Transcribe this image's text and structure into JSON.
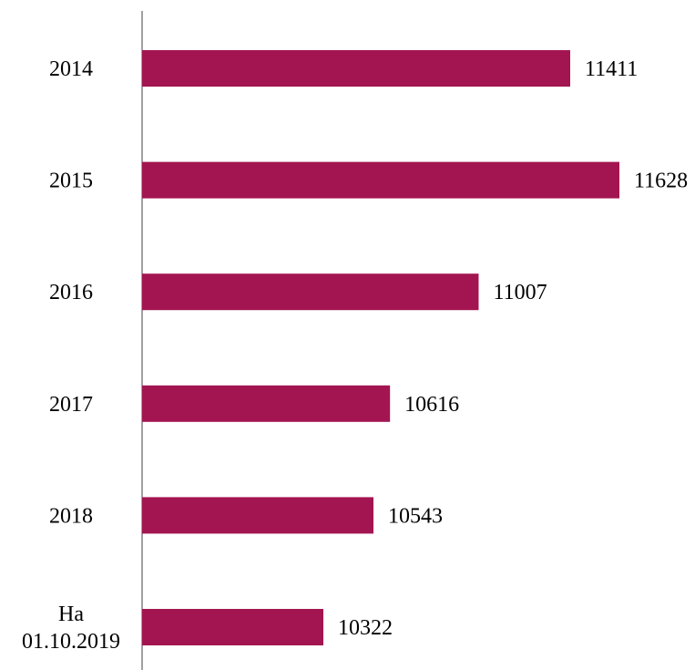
{
  "chart_data": {
    "type": "bar",
    "orientation": "horizontal",
    "title": "",
    "xlabel": "",
    "ylabel": "",
    "categories": [
      [
        "2014"
      ],
      [
        "2015"
      ],
      [
        "2016"
      ],
      [
        "2017"
      ],
      [
        "2018"
      ],
      [
        "На",
        "01.10.2019"
      ]
    ],
    "values": [
      11411,
      11628,
      11007,
      10616,
      10543,
      10322
    ],
    "data_labels": [
      "11411",
      "11628",
      "11007",
      "10616",
      "10543",
      "10322"
    ],
    "bar_color": "#A31551",
    "axis_color": "#808080",
    "grid": false,
    "legend": "none"
  }
}
